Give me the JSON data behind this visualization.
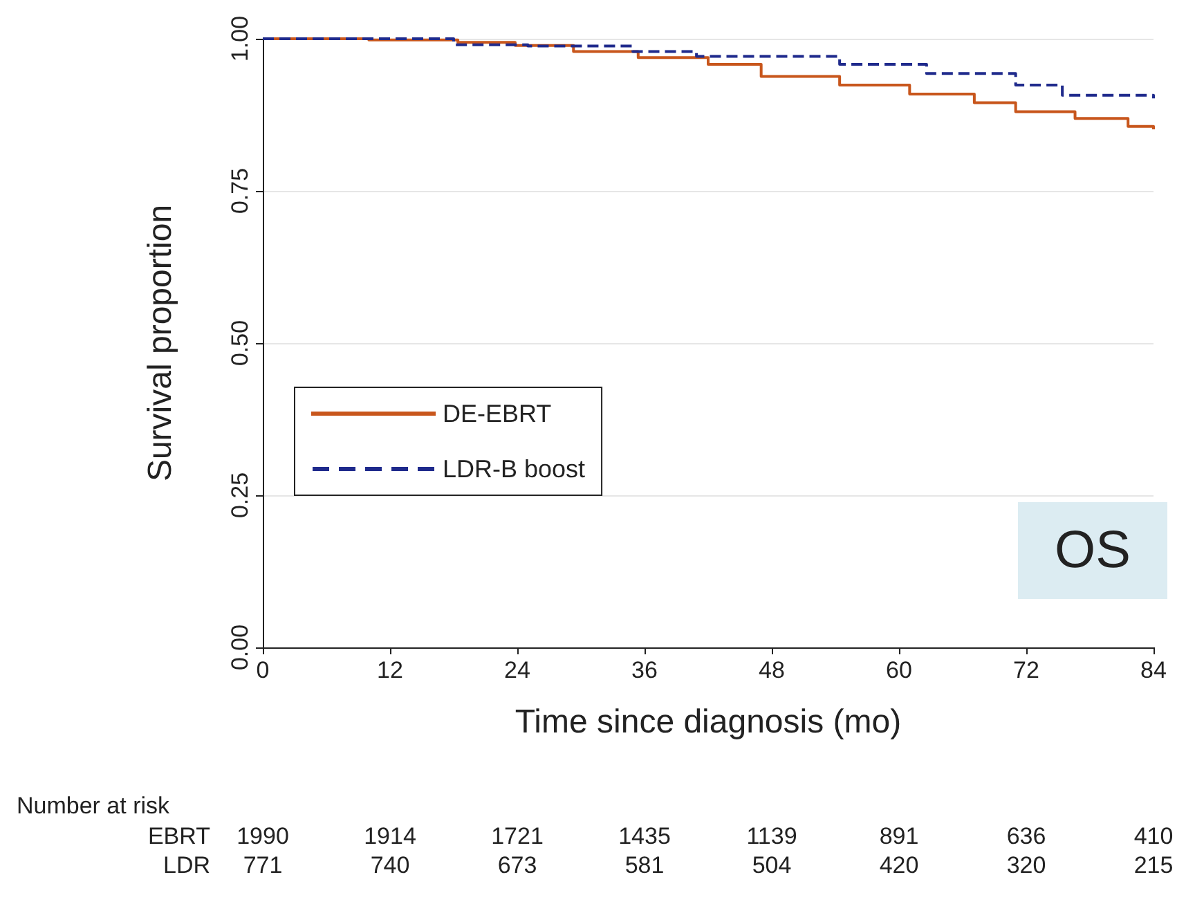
{
  "chart_data": {
    "type": "step",
    "xlabel": "Time since diagnosis (mo)",
    "ylabel": "Survival proportion",
    "xlim": [
      0,
      84
    ],
    "xticks": [
      0,
      12,
      24,
      36,
      48,
      60,
      72,
      84
    ],
    "ylim": [
      0,
      1
    ],
    "yticks": [
      {
        "value": 0,
        "label": "0.00"
      },
      {
        "value": 0.25,
        "label": "0.25"
      },
      {
        "value": 0.5,
        "label": "0.50"
      },
      {
        "value": 0.75,
        "label": "0.75"
      },
      {
        "value": 1,
        "label": "1.00"
      }
    ],
    "grid": "y",
    "legend": "left",
    "marker": "none",
    "series": [
      {
        "name": "DE-EBRT",
        "color": "#c8561c",
        "line_style": "solid",
        "x": [
          0,
          10,
          18.4,
          23.8,
          29.3,
          35.4,
          42,
          47,
          54.4,
          61,
          67.1,
          71,
          76.6,
          81.6,
          84
        ],
        "values": [
          1,
          0.998,
          0.994,
          0.989,
          0.979,
          0.969,
          0.958,
          0.938,
          0.924,
          0.909,
          0.895,
          0.88,
          0.869,
          0.856,
          0.851
        ]
      },
      {
        "name": "LDR-B boost",
        "color": "#1f2a8c",
        "line_style": "dashed",
        "x": [
          0,
          18,
          25,
          34.9,
          40.9,
          54.4,
          62.6,
          71,
          75.4,
          84
        ],
        "values": [
          1,
          0.99,
          0.988,
          0.979,
          0.971,
          0.958,
          0.943,
          0.924,
          0.907,
          0.902
        ]
      }
    ],
    "annotations": [
      "OS",
      "Number at risk",
      "EBRT 1990 1914 1721 1435 1139 891 636 410",
      "LDR 771 740 673 581 504 420 320 215"
    ]
  }
}
